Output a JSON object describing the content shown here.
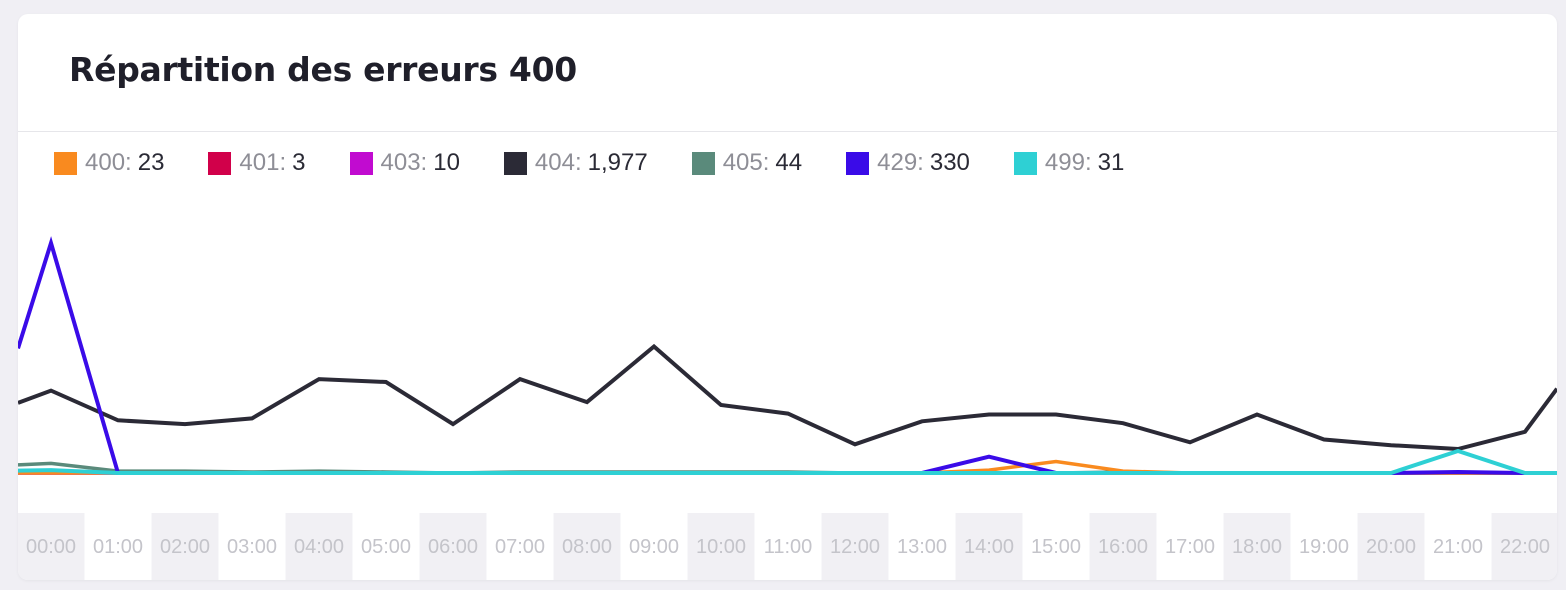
{
  "card": {
    "title": "Répartition des erreurs 400"
  },
  "legend": [
    {
      "code": "400",
      "value": "23",
      "color": "#f98a1f"
    },
    {
      "code": "401",
      "value": "3",
      "color": "#d1004a"
    },
    {
      "code": "403",
      "value": "10",
      "color": "#c10bd0"
    },
    {
      "code": "404",
      "value": "1,977",
      "color": "#2b2a36"
    },
    {
      "code": "405",
      "value": "44",
      "color": "#5a8a7b"
    },
    {
      "code": "429",
      "value": "330",
      "color": "#3a0be8"
    },
    {
      "code": "499",
      "value": "31",
      "color": "#2ed0d4"
    }
  ],
  "chart_data": {
    "type": "line",
    "title": "Répartition des erreurs 400",
    "x": [
      "00:00",
      "01:00",
      "02:00",
      "03:00",
      "04:00",
      "05:00",
      "06:00",
      "07:00",
      "08:00",
      "09:00",
      "10:00",
      "11:00",
      "12:00",
      "13:00",
      "14:00",
      "15:00",
      "16:00",
      "17:00",
      "18:00",
      "19:00",
      "20:00",
      "21:00",
      "22:00"
    ],
    "ylim": [
      0,
      240
    ],
    "series": [
      {
        "name": "400",
        "color": "#f98a1f",
        "values": [
          0,
          0,
          0,
          0,
          0,
          0,
          0,
          0,
          0,
          0,
          0,
          0,
          0,
          0,
          3,
          12,
          2,
          0,
          0,
          0,
          0,
          0,
          0
        ]
      },
      {
        "name": "401",
        "color": "#d1004a",
        "values": [
          0,
          0,
          0,
          0,
          0,
          0,
          0,
          0,
          0,
          0,
          0,
          0,
          0,
          0,
          0,
          0,
          0,
          0,
          0,
          0,
          0,
          0,
          0
        ]
      },
      {
        "name": "403",
        "color": "#c10bd0",
        "values": [
          0,
          0,
          0,
          0,
          0,
          0,
          0,
          0,
          0,
          0,
          0,
          0,
          0,
          0,
          0,
          0,
          0,
          0,
          0,
          0,
          0,
          0,
          0
        ]
      },
      {
        "name": "404",
        "color": "#2b2a36",
        "values": [
          86,
          55,
          51,
          57,
          98,
          95,
          51,
          98,
          74,
          132,
          71,
          62,
          30,
          54,
          61,
          61,
          52,
          32,
          61,
          35,
          29,
          25,
          43
        ]
      },
      {
        "name": "405",
        "color": "#5a8a7b",
        "values": [
          10,
          2,
          2,
          1,
          2,
          1,
          0,
          1,
          1,
          1,
          1,
          1,
          0,
          0,
          0,
          0,
          1,
          0,
          0,
          0,
          0,
          0,
          0
        ]
      },
      {
        "name": "429",
        "color": "#3a0be8",
        "values": [
          240,
          0,
          0,
          0,
          0,
          0,
          0,
          0,
          0,
          0,
          0,
          0,
          0,
          0,
          17,
          0,
          0,
          0,
          0,
          0,
          0,
          1,
          0
        ]
      },
      {
        "name": "499",
        "color": "#2ed0d4",
        "values": [
          3,
          0,
          0,
          0,
          0,
          0,
          0,
          0,
          0,
          0,
          0,
          0,
          0,
          0,
          0,
          0,
          0,
          0,
          0,
          0,
          0,
          23,
          0
        ]
      }
    ]
  }
}
